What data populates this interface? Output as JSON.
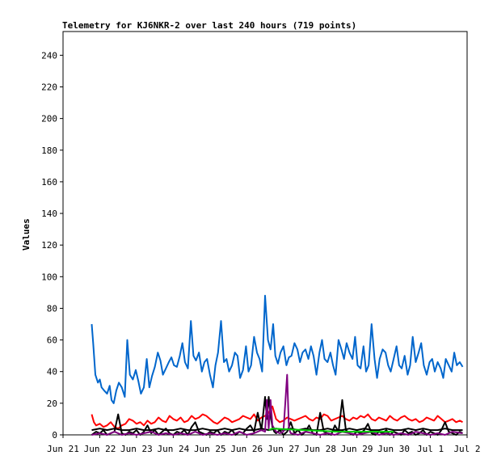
{
  "chart_data": {
    "type": "line",
    "title": "Telemetry for KJ6NKR-2 over last 240 hours (719 points)",
    "xlabel": "",
    "ylabel": "Values",
    "ylim": [
      0,
      255
    ],
    "xlim": [
      0,
      11
    ],
    "x_ticks": [
      "Jun 21",
      "Jun 22",
      "Jun 23",
      "Jun 24",
      "Jun 25",
      "Jun 26",
      "Jun 27",
      "Jun 28",
      "Jun 29",
      "Jun 30",
      "Jul 1",
      "Jul 2"
    ],
    "y_ticks": [
      0,
      20,
      40,
      60,
      80,
      100,
      120,
      140,
      160,
      180,
      200,
      220,
      240
    ],
    "grid": false,
    "legend": "none",
    "series": [
      {
        "color": "#0066cc",
        "x": [
          0.78,
          0.82,
          0.88,
          0.95,
          1.0,
          1.05,
          1.12,
          1.2,
          1.27,
          1.32,
          1.38,
          1.45,
          1.52,
          1.6,
          1.68,
          1.75,
          1.82,
          1.9,
          1.98,
          2.05,
          2.12,
          2.2,
          2.28,
          2.35,
          2.42,
          2.5,
          2.58,
          2.65,
          2.72,
          2.8,
          2.88,
          2.95,
          3.02,
          3.1,
          3.18,
          3.25,
          3.32,
          3.4,
          3.48,
          3.55,
          3.62,
          3.7,
          3.78,
          3.85,
          3.92,
          4.0,
          4.08,
          4.15,
          4.22,
          4.3,
          4.38,
          4.45,
          4.52,
          4.6,
          4.68,
          4.75,
          4.82,
          4.9,
          4.98,
          5.05,
          5.12,
          5.2,
          5.28,
          5.35,
          5.42,
          5.5,
          5.58,
          5.65,
          5.72,
          5.78,
          5.85,
          5.92,
          6.0,
          6.08,
          6.15,
          6.22,
          6.3,
          6.38,
          6.45,
          6.52,
          6.6,
          6.68,
          6.75,
          6.82,
          6.9,
          6.98,
          7.05,
          7.12,
          7.2,
          7.28,
          7.35,
          7.42,
          7.5,
          7.58,
          7.65,
          7.72,
          7.8,
          7.88,
          7.95,
          8.02,
          8.1,
          8.18,
          8.25,
          8.32,
          8.4,
          8.48,
          8.55,
          8.62,
          8.7,
          8.78,
          8.85,
          8.92,
          9.0,
          9.08,
          9.15,
          9.22,
          9.3,
          9.38,
          9.45,
          9.52,
          9.6,
          9.68,
          9.75,
          9.82,
          9.9,
          9.98,
          10.05,
          10.12,
          10.2,
          10.28,
          10.35,
          10.42,
          10.5,
          10.58,
          10.65,
          10.72,
          10.8,
          10.88
        ],
        "y": [
          70,
          58,
          38,
          33,
          35,
          30,
          28,
          26,
          31,
          22,
          20,
          28,
          33,
          30,
          24,
          60,
          38,
          35,
          41,
          34,
          26,
          30,
          48,
          30,
          37,
          43,
          52,
          47,
          38,
          42,
          46,
          49,
          44,
          43,
          50,
          58,
          46,
          42,
          72,
          50,
          47,
          52,
          40,
          46,
          48,
          38,
          30,
          44,
          52,
          72,
          46,
          48,
          40,
          44,
          52,
          50,
          36,
          41,
          56,
          40,
          44,
          62,
          52,
          48,
          40,
          88,
          60,
          54,
          70,
          50,
          45,
          52,
          56,
          44,
          49,
          50,
          58,
          54,
          46,
          52,
          54,
          48,
          56,
          50,
          38,
          52,
          60,
          48,
          46,
          52,
          44,
          38,
          60,
          54,
          48,
          58,
          52,
          48,
          62,
          44,
          42,
          56,
          40,
          44,
          70,
          48,
          36,
          48,
          54,
          52,
          44,
          40,
          48,
          56,
          44,
          42,
          50,
          38,
          44,
          62,
          46,
          52,
          58,
          44,
          38,
          46,
          48,
          40,
          46,
          42,
          36,
          48,
          44,
          40,
          52,
          44,
          46,
          43
        ]
      },
      {
        "color": "#ff0000",
        "x": [
          0.78,
          0.84,
          0.9,
          1.0,
          1.1,
          1.2,
          1.3,
          1.4,
          1.5,
          1.6,
          1.7,
          1.8,
          1.9,
          2.0,
          2.1,
          2.2,
          2.3,
          2.4,
          2.5,
          2.6,
          2.7,
          2.8,
          2.9,
          3.0,
          3.1,
          3.2,
          3.3,
          3.4,
          3.5,
          3.6,
          3.7,
          3.8,
          3.9,
          4.0,
          4.1,
          4.2,
          4.3,
          4.4,
          4.5,
          4.6,
          4.7,
          4.8,
          4.9,
          5.0,
          5.1,
          5.2,
          5.3,
          5.4,
          5.5,
          5.6,
          5.7,
          5.8,
          5.9,
          6.0,
          6.1,
          6.2,
          6.3,
          6.4,
          6.5,
          6.6,
          6.7,
          6.8,
          6.9,
          7.0,
          7.1,
          7.2,
          7.3,
          7.4,
          7.5,
          7.6,
          7.7,
          7.8,
          7.9,
          8.0,
          8.1,
          8.2,
          8.3,
          8.4,
          8.5,
          8.6,
          8.7,
          8.8,
          8.9,
          9.0,
          9.1,
          9.2,
          9.3,
          9.4,
          9.5,
          9.6,
          9.7,
          9.8,
          9.9,
          10.0,
          10.1,
          10.2,
          10.3,
          10.4,
          10.5,
          10.6,
          10.7,
          10.8,
          10.88
        ],
        "y": [
          13,
          8,
          6,
          7,
          5,
          6,
          8,
          5,
          4,
          6,
          7,
          10,
          9,
          7,
          8,
          6,
          9,
          7,
          8,
          11,
          9,
          8,
          12,
          10,
          9,
          11,
          8,
          9,
          12,
          10,
          11,
          13,
          12,
          10,
          8,
          7,
          9,
          11,
          10,
          8,
          9,
          10,
          12,
          11,
          10,
          13,
          9,
          11,
          12,
          14,
          18,
          10,
          8,
          9,
          11,
          10,
          9,
          10,
          11,
          12,
          10,
          9,
          11,
          10,
          13,
          12,
          9,
          10,
          11,
          12,
          10,
          9,
          11,
          10,
          12,
          11,
          13,
          10,
          9,
          11,
          10,
          9,
          12,
          10,
          9,
          11,
          12,
          10,
          9,
          10,
          8,
          9,
          11,
          10,
          9,
          12,
          10,
          8,
          9,
          10,
          8,
          9,
          8
        ]
      },
      {
        "color": "#000000",
        "x": [
          0.78,
          1.0,
          1.2,
          1.4,
          1.6,
          1.8,
          2.0,
          2.2,
          2.4,
          2.6,
          2.8,
          3.0,
          3.2,
          3.4,
          3.6,
          3.8,
          4.0,
          4.2,
          4.4,
          4.6,
          4.8,
          5.0,
          5.2,
          5.4,
          5.6,
          5.8,
          6.0,
          6.2,
          6.4,
          6.6,
          6.8,
          7.0,
          7.2,
          7.4,
          7.6,
          7.8,
          8.0,
          8.2,
          8.4,
          8.6,
          8.8,
          9.0,
          9.2,
          9.4,
          9.6,
          9.8,
          10.0,
          10.2,
          10.4,
          10.6,
          10.88
        ],
        "y": [
          3,
          4,
          3,
          4,
          3,
          3,
          4,
          3,
          3,
          4,
          3,
          3,
          4,
          3,
          3,
          4,
          3,
          3,
          4,
          3,
          4,
          3,
          3,
          4,
          3,
          4,
          3,
          4,
          3,
          4,
          3,
          3,
          4,
          3,
          3,
          4,
          3,
          4,
          3,
          3,
          4,
          3,
          3,
          4,
          3,
          4,
          3,
          3,
          4,
          3,
          3
        ]
      },
      {
        "color": "#000000",
        "x": [
          0.78,
          0.9,
          1.0,
          1.1,
          1.2,
          1.3,
          1.4,
          1.5,
          1.6,
          1.7,
          1.8,
          1.9,
          2.0,
          2.1,
          2.2,
          2.3,
          2.4,
          2.5,
          2.6,
          2.7,
          2.8,
          2.9,
          3.0,
          3.1,
          3.2,
          3.3,
          3.4,
          3.5,
          3.6,
          3.7,
          3.8,
          3.9,
          4.0,
          4.1,
          4.2,
          4.3,
          4.4,
          4.5,
          4.6,
          4.7,
          4.8,
          4.9,
          5.0,
          5.1,
          5.2,
          5.3,
          5.4,
          5.5,
          5.55,
          5.6,
          5.65,
          5.7,
          5.75,
          5.8,
          5.9,
          6.0,
          6.1,
          6.2,
          6.3,
          6.4,
          6.5,
          6.6,
          6.7,
          6.8,
          6.9,
          7.0,
          7.1,
          7.2,
          7.3,
          7.4,
          7.5,
          7.6,
          7.7,
          7.8,
          7.9,
          8.0,
          8.1,
          8.2,
          8.3,
          8.4,
          8.5,
          8.6,
          8.7,
          8.8,
          8.9,
          9.0,
          9.1,
          9.2,
          9.3,
          9.4,
          9.5,
          9.6,
          9.7,
          9.8,
          9.9,
          10.0,
          10.1,
          10.2,
          10.3,
          10.4,
          10.5,
          10.6,
          10.7,
          10.8,
          10.88
        ],
        "y": [
          0,
          2,
          1,
          3,
          0,
          1,
          2,
          13,
          1,
          0,
          2,
          1,
          3,
          0,
          2,
          6,
          1,
          3,
          0,
          2,
          4,
          1,
          0,
          2,
          1,
          3,
          0,
          5,
          8,
          2,
          1,
          0,
          2,
          1,
          3,
          0,
          2,
          1,
          3,
          0,
          2,
          1,
          4,
          6,
          2,
          14,
          3,
          24,
          10,
          24,
          12,
          5,
          2,
          1,
          3,
          0,
          2,
          8,
          1,
          3,
          0,
          2,
          6,
          1,
          0,
          14,
          2,
          1,
          0,
          6,
          2,
          22,
          3,
          1,
          0,
          2,
          1,
          3,
          7,
          1,
          0,
          2,
          1,
          3,
          0,
          2,
          1,
          0,
          3,
          1,
          2,
          0,
          1,
          3,
          0,
          2,
          1,
          0,
          3,
          8,
          2,
          1,
          0,
          2,
          1
        ]
      },
      {
        "color": "#800080",
        "x": [
          0.78,
          1.0,
          1.2,
          1.4,
          1.6,
          1.8,
          2.0,
          2.2,
          2.4,
          2.6,
          2.8,
          3.0,
          3.2,
          3.4,
          3.6,
          3.8,
          4.0,
          4.2,
          4.4,
          4.6,
          4.8,
          5.0,
          5.2,
          5.4,
          5.5,
          5.55,
          5.6,
          5.65,
          5.7,
          5.8,
          5.9,
          6.0,
          6.05,
          6.1,
          6.15,
          6.2,
          6.4,
          6.6,
          6.8,
          7.0,
          7.2,
          7.4,
          7.6,
          7.8,
          8.0,
          8.2,
          8.4,
          8.6,
          8.8,
          9.0,
          9.2,
          9.4,
          9.6,
          9.8,
          10.0,
          10.2,
          10.4,
          10.6,
          10.88
        ],
        "y": [
          0,
          1,
          0,
          2,
          0,
          1,
          0,
          1,
          2,
          0,
          1,
          0,
          1,
          0,
          2,
          0,
          1,
          0,
          1,
          0,
          2,
          0,
          1,
          3,
          2,
          22,
          4,
          22,
          6,
          2,
          1,
          2,
          20,
          38,
          4,
          1,
          0,
          2,
          1,
          0,
          1,
          0,
          2,
          1,
          0,
          1,
          2,
          0,
          1,
          0,
          1,
          0,
          2,
          1,
          0,
          1,
          0,
          2,
          1
        ]
      },
      {
        "color": "#00cc00",
        "x": [
          5.6,
          5.7,
          7.5,
          9.0
        ],
        "y": [
          3,
          4,
          2,
          2
        ]
      }
    ]
  }
}
